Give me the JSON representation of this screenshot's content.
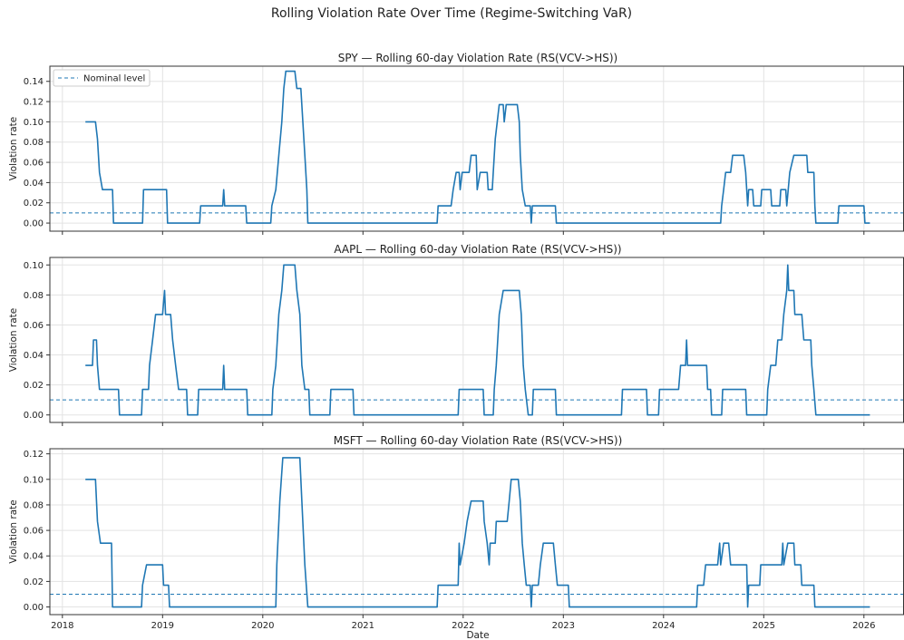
{
  "figure": {
    "title": "Rolling Violation Rate Over Time (Regime-Switching VaR)",
    "xlabel": "Date",
    "x_ticks": [
      "2018",
      "2019",
      "2020",
      "2021",
      "2022",
      "2023",
      "2024",
      "2025",
      "2026"
    ],
    "legend_label": "Nominal level",
    "nominal_level": 0.01,
    "colors": {
      "series": "#1f77b4",
      "nominal": "#1f77b4"
    }
  },
  "chart_data": [
    {
      "type": "line",
      "title": "SPY — Rolling 60-day Violation Rate (RS(VCV->HS))",
      "ylabel": "Violation rate",
      "ylim": [
        -0.008,
        0.155
      ],
      "y_ticks": [
        "0.00",
        "0.02",
        "0.04",
        "0.06",
        "0.08",
        "0.10",
        "0.12",
        "0.14"
      ],
      "legend": "top-left",
      "nominal": 0.01,
      "points": [
        [
          2018.23,
          0.1
        ],
        [
          2018.33,
          0.1
        ],
        [
          2018.35,
          0.083
        ],
        [
          2018.37,
          0.05
        ],
        [
          2018.4,
          0.033
        ],
        [
          2018.5,
          0.033
        ],
        [
          2018.51,
          0
        ],
        [
          2018.8,
          0
        ],
        [
          2018.81,
          0.033
        ],
        [
          2019.04,
          0.033
        ],
        [
          2019.05,
          0
        ],
        [
          2019.37,
          0
        ],
        [
          2019.38,
          0.017
        ],
        [
          2019.6,
          0.017
        ],
        [
          2019.61,
          0.033
        ],
        [
          2019.62,
          0.017
        ],
        [
          2019.83,
          0.017
        ],
        [
          2019.84,
          0
        ],
        [
          2020.08,
          0
        ],
        [
          2020.09,
          0.017
        ],
        [
          2020.13,
          0.033
        ],
        [
          2020.16,
          0.067
        ],
        [
          2020.19,
          0.1
        ],
        [
          2020.21,
          0.133
        ],
        [
          2020.23,
          0.15
        ],
        [
          2020.32,
          0.15
        ],
        [
          2020.34,
          0.133
        ],
        [
          2020.38,
          0.133
        ],
        [
          2020.4,
          0.1
        ],
        [
          2020.42,
          0.067
        ],
        [
          2020.44,
          0.033
        ],
        [
          2020.45,
          0
        ],
        [
          2021.74,
          0
        ],
        [
          2021.75,
          0.017
        ],
        [
          2021.88,
          0.017
        ],
        [
          2021.9,
          0.033
        ],
        [
          2021.93,
          0.05
        ],
        [
          2021.96,
          0.05
        ],
        [
          2021.97,
          0.033
        ],
        [
          2021.99,
          0.05
        ],
        [
          2022.06,
          0.05
        ],
        [
          2022.08,
          0.067
        ],
        [
          2022.13,
          0.067
        ],
        [
          2022.14,
          0.033
        ],
        [
          2022.17,
          0.05
        ],
        [
          2022.24,
          0.05
        ],
        [
          2022.25,
          0.033
        ],
        [
          2022.29,
          0.033
        ],
        [
          2022.3,
          0.05
        ],
        [
          2022.32,
          0.083
        ],
        [
          2022.34,
          0.1
        ],
        [
          2022.36,
          0.117
        ],
        [
          2022.4,
          0.117
        ],
        [
          2022.41,
          0.1
        ],
        [
          2022.43,
          0.117
        ],
        [
          2022.54,
          0.117
        ],
        [
          2022.56,
          0.1
        ],
        [
          2022.57,
          0.067
        ],
        [
          2022.59,
          0.033
        ],
        [
          2022.62,
          0.017
        ],
        [
          2022.67,
          0.017
        ],
        [
          2022.68,
          0
        ],
        [
          2022.69,
          0.017
        ],
        [
          2022.92,
          0.017
        ],
        [
          2022.93,
          0
        ],
        [
          2024.57,
          0
        ],
        [
          2024.58,
          0.017
        ],
        [
          2024.6,
          0.033
        ],
        [
          2024.62,
          0.05
        ],
        [
          2024.67,
          0.05
        ],
        [
          2024.69,
          0.067
        ],
        [
          2024.8,
          0.067
        ],
        [
          2024.82,
          0.05
        ],
        [
          2024.84,
          0.017
        ],
        [
          2024.85,
          0.033
        ],
        [
          2024.89,
          0.033
        ],
        [
          2024.9,
          0.017
        ],
        [
          2024.97,
          0.017
        ],
        [
          2024.98,
          0.033
        ],
        [
          2025.07,
          0.033
        ],
        [
          2025.08,
          0.017
        ],
        [
          2025.16,
          0.017
        ],
        [
          2025.17,
          0.033
        ],
        [
          2025.22,
          0.033
        ],
        [
          2025.23,
          0.017
        ],
        [
          2025.26,
          0.05
        ],
        [
          2025.3,
          0.067
        ],
        [
          2025.43,
          0.067
        ],
        [
          2025.44,
          0.05
        ],
        [
          2025.5,
          0.05
        ],
        [
          2025.51,
          0.017
        ],
        [
          2025.52,
          0
        ],
        [
          2025.74,
          0
        ],
        [
          2025.75,
          0.017
        ],
        [
          2026.0,
          0.017
        ],
        [
          2026.01,
          0
        ],
        [
          2026.06,
          0
        ]
      ]
    },
    {
      "type": "line",
      "title": "AAPL — Rolling 60-day Violation Rate (RS(VCV->HS))",
      "ylabel": "Violation rate",
      "ylim": [
        -0.005,
        0.105
      ],
      "y_ticks": [
        "0.00",
        "0.02",
        "0.04",
        "0.06",
        "0.08",
        "0.10"
      ],
      "nominal": 0.01,
      "points": [
        [
          2018.23,
          0.033
        ],
        [
          2018.3,
          0.033
        ],
        [
          2018.31,
          0.05
        ],
        [
          2018.34,
          0.05
        ],
        [
          2018.35,
          0.033
        ],
        [
          2018.37,
          0.017
        ],
        [
          2018.56,
          0.017
        ],
        [
          2018.57,
          0
        ],
        [
          2018.79,
          0
        ],
        [
          2018.8,
          0.017
        ],
        [
          2018.86,
          0.017
        ],
        [
          2018.87,
          0.033
        ],
        [
          2018.9,
          0.05
        ],
        [
          2018.93,
          0.067
        ],
        [
          2019.0,
          0.067
        ],
        [
          2019.02,
          0.083
        ],
        [
          2019.03,
          0.067
        ],
        [
          2019.08,
          0.067
        ],
        [
          2019.1,
          0.05
        ],
        [
          2019.13,
          0.033
        ],
        [
          2019.16,
          0.017
        ],
        [
          2019.24,
          0.017
        ],
        [
          2019.25,
          0
        ],
        [
          2019.35,
          0
        ],
        [
          2019.36,
          0.017
        ],
        [
          2019.6,
          0.017
        ],
        [
          2019.61,
          0.033
        ],
        [
          2019.62,
          0.017
        ],
        [
          2019.84,
          0.017
        ],
        [
          2019.85,
          0
        ],
        [
          2020.09,
          0
        ],
        [
          2020.1,
          0.017
        ],
        [
          2020.13,
          0.033
        ],
        [
          2020.16,
          0.067
        ],
        [
          2020.19,
          0.083
        ],
        [
          2020.21,
          0.1
        ],
        [
          2020.32,
          0.1
        ],
        [
          2020.34,
          0.083
        ],
        [
          2020.37,
          0.067
        ],
        [
          2020.39,
          0.033
        ],
        [
          2020.42,
          0.017
        ],
        [
          2020.46,
          0.017
        ],
        [
          2020.47,
          0
        ],
        [
          2020.67,
          0
        ],
        [
          2020.68,
          0.017
        ],
        [
          2020.9,
          0.017
        ],
        [
          2020.91,
          0
        ],
        [
          2021.95,
          0
        ],
        [
          2021.96,
          0.017
        ],
        [
          2022.2,
          0.017
        ],
        [
          2022.21,
          0
        ],
        [
          2022.3,
          0
        ],
        [
          2022.31,
          0.017
        ],
        [
          2022.33,
          0.033
        ],
        [
          2022.36,
          0.067
        ],
        [
          2022.4,
          0.083
        ],
        [
          2022.56,
          0.083
        ],
        [
          2022.58,
          0.067
        ],
        [
          2022.6,
          0.033
        ],
        [
          2022.62,
          0.017
        ],
        [
          2022.65,
          0
        ],
        [
          2022.69,
          0
        ],
        [
          2022.7,
          0.017
        ],
        [
          2022.92,
          0.017
        ],
        [
          2022.93,
          0
        ],
        [
          2023.58,
          0
        ],
        [
          2023.59,
          0.017
        ],
        [
          2023.83,
          0.017
        ],
        [
          2023.84,
          0
        ],
        [
          2023.95,
          0
        ],
        [
          2023.96,
          0.017
        ],
        [
          2024.15,
          0.017
        ],
        [
          2024.17,
          0.033
        ],
        [
          2024.22,
          0.033
        ],
        [
          2024.23,
          0.05
        ],
        [
          2024.24,
          0.033
        ],
        [
          2024.43,
          0.033
        ],
        [
          2024.44,
          0.017
        ],
        [
          2024.47,
          0.017
        ],
        [
          2024.48,
          0
        ],
        [
          2024.58,
          0
        ],
        [
          2024.59,
          0.017
        ],
        [
          2024.82,
          0.017
        ],
        [
          2024.83,
          0
        ],
        [
          2025.03,
          0
        ],
        [
          2025.04,
          0.017
        ],
        [
          2025.07,
          0.033
        ],
        [
          2025.12,
          0.033
        ],
        [
          2025.14,
          0.05
        ],
        [
          2025.18,
          0.05
        ],
        [
          2025.2,
          0.067
        ],
        [
          2025.23,
          0.083
        ],
        [
          2025.24,
          0.1
        ],
        [
          2025.25,
          0.083
        ],
        [
          2025.3,
          0.083
        ],
        [
          2025.31,
          0.067
        ],
        [
          2025.38,
          0.067
        ],
        [
          2025.4,
          0.05
        ],
        [
          2025.47,
          0.05
        ],
        [
          2025.48,
          0.033
        ],
        [
          2025.5,
          0.017
        ],
        [
          2025.52,
          0
        ],
        [
          2026.06,
          0
        ]
      ]
    },
    {
      "type": "line",
      "title": "MSFT — Rolling 60-day Violation Rate (RS(VCV->HS))",
      "ylabel": "Violation rate",
      "ylim": [
        -0.006,
        0.124
      ],
      "y_ticks": [
        "0.00",
        "0.02",
        "0.04",
        "0.06",
        "0.08",
        "0.10",
        "0.12"
      ],
      "nominal": 0.01,
      "points": [
        [
          2018.23,
          0.1
        ],
        [
          2018.33,
          0.1
        ],
        [
          2018.35,
          0.067
        ],
        [
          2018.38,
          0.05
        ],
        [
          2018.49,
          0.05
        ],
        [
          2018.5,
          0
        ],
        [
          2018.79,
          0
        ],
        [
          2018.8,
          0.017
        ],
        [
          2018.84,
          0.033
        ],
        [
          2019.0,
          0.033
        ],
        [
          2019.01,
          0.017
        ],
        [
          2019.06,
          0.017
        ],
        [
          2019.07,
          0
        ],
        [
          2020.13,
          0
        ],
        [
          2020.14,
          0.033
        ],
        [
          2020.17,
          0.083
        ],
        [
          2020.2,
          0.117
        ],
        [
          2020.37,
          0.117
        ],
        [
          2020.39,
          0.083
        ],
        [
          2020.42,
          0.033
        ],
        [
          2020.45,
          0
        ],
        [
          2021.74,
          0
        ],
        [
          2021.75,
          0.017
        ],
        [
          2021.95,
          0.017
        ],
        [
          2021.96,
          0.05
        ],
        [
          2021.97,
          0.033
        ],
        [
          2022.01,
          0.05
        ],
        [
          2022.04,
          0.067
        ],
        [
          2022.08,
          0.083
        ],
        [
          2022.2,
          0.083
        ],
        [
          2022.21,
          0.067
        ],
        [
          2022.24,
          0.05
        ],
        [
          2022.26,
          0.033
        ],
        [
          2022.27,
          0.05
        ],
        [
          2022.32,
          0.05
        ],
        [
          2022.33,
          0.067
        ],
        [
          2022.44,
          0.067
        ],
        [
          2022.46,
          0.083
        ],
        [
          2022.48,
          0.1
        ],
        [
          2022.55,
          0.1
        ],
        [
          2022.57,
          0.083
        ],
        [
          2022.59,
          0.05
        ],
        [
          2022.61,
          0.033
        ],
        [
          2022.63,
          0.017
        ],
        [
          2022.67,
          0.017
        ],
        [
          2022.68,
          0
        ],
        [
          2022.69,
          0.017
        ],
        [
          2022.75,
          0.017
        ],
        [
          2022.77,
          0.033
        ],
        [
          2022.8,
          0.05
        ],
        [
          2022.9,
          0.05
        ],
        [
          2022.92,
          0.033
        ],
        [
          2022.94,
          0.017
        ],
        [
          2023.05,
          0.017
        ],
        [
          2023.06,
          0
        ],
        [
          2024.33,
          0
        ],
        [
          2024.34,
          0.017
        ],
        [
          2024.4,
          0.017
        ],
        [
          2024.42,
          0.033
        ],
        [
          2024.54,
          0.033
        ],
        [
          2024.56,
          0.05
        ],
        [
          2024.57,
          0.033
        ],
        [
          2024.6,
          0.05
        ],
        [
          2024.65,
          0.05
        ],
        [
          2024.67,
          0.033
        ],
        [
          2024.83,
          0.033
        ],
        [
          2024.84,
          0
        ],
        [
          2024.85,
          0.017
        ],
        [
          2024.96,
          0.017
        ],
        [
          2024.97,
          0.033
        ],
        [
          2025.18,
          0.033
        ],
        [
          2025.19,
          0.05
        ],
        [
          2025.2,
          0.033
        ],
        [
          2025.24,
          0.05
        ],
        [
          2025.3,
          0.05
        ],
        [
          2025.31,
          0.033
        ],
        [
          2025.37,
          0.033
        ],
        [
          2025.38,
          0.017
        ],
        [
          2025.5,
          0.017
        ],
        [
          2025.51,
          0
        ],
        [
          2026.06,
          0
        ]
      ]
    }
  ]
}
